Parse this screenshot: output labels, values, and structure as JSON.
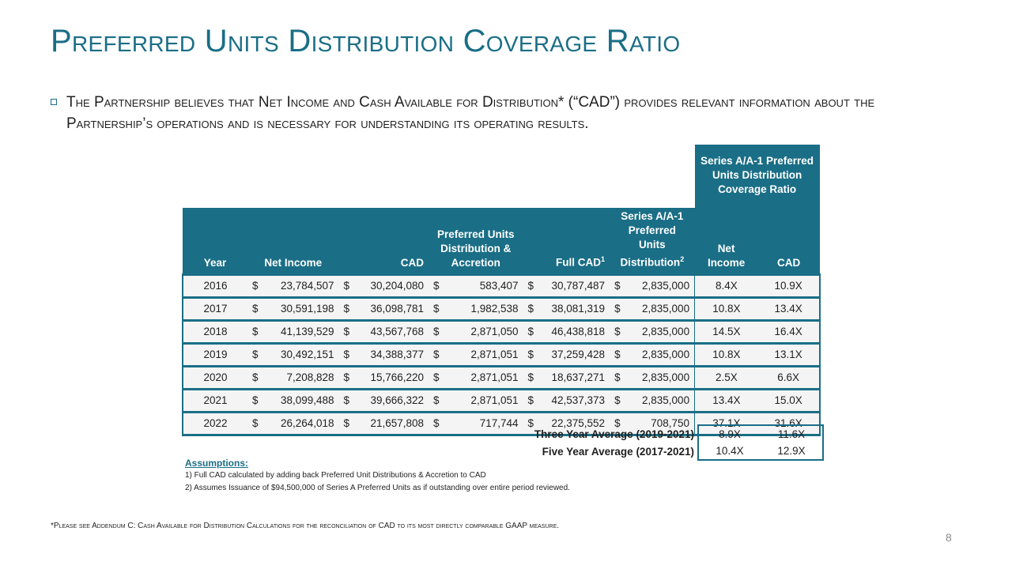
{
  "title": "Preferred Units Distribution Coverage Ratio",
  "bullet": "The Partnership believes that Net Income and Cash Available for Distribution* (“CAD”) provides relevant information about the Partnership’s operations and is necessary for understanding its operating results.",
  "table": {
    "group_header": "Series A/A-1 Preferred Units Distribution Coverage Ratio",
    "headers": {
      "year": "Year",
      "net_income": "Net Income",
      "cad": "CAD",
      "pref": "Preferred Units Distribution & Accretion",
      "full_cad": "Full CAD",
      "full_cad_sup": "1",
      "series": "Series A/A-1 Preferred Units Distribution",
      "series_sup": "2",
      "ratio_ni": "Net Income",
      "ratio_cad": "CAD"
    },
    "currency": "$",
    "rows": [
      {
        "year": "2016",
        "net_income": "23,784,507",
        "cad": "30,204,080",
        "pref": "583,407",
        "full_cad": "30,787,487",
        "series": "2,835,000",
        "ratio_ni": "8.4X",
        "ratio_cad": "10.9X"
      },
      {
        "year": "2017",
        "net_income": "30,591,198",
        "cad": "36,098,781",
        "pref": "1,982,538",
        "full_cad": "38,081,319",
        "series": "2,835,000",
        "ratio_ni": "10.8X",
        "ratio_cad": "13.4X"
      },
      {
        "year": "2018",
        "net_income": "41,139,529",
        "cad": "43,567,768",
        "pref": "2,871,050",
        "full_cad": "46,438,818",
        "series": "2,835,000",
        "ratio_ni": "14.5X",
        "ratio_cad": "16.4X"
      },
      {
        "year": "2019",
        "net_income": "30,492,151",
        "cad": "34,388,377",
        "pref": "2,871,051",
        "full_cad": "37,259,428",
        "series": "2,835,000",
        "ratio_ni": "10.8X",
        "ratio_cad": "13.1X"
      },
      {
        "year": "2020",
        "net_income": "7,208,828",
        "cad": "15,766,220",
        "pref": "2,871,051",
        "full_cad": "18,637,271",
        "series": "2,835,000",
        "ratio_ni": "2.5X",
        "ratio_cad": "6.6X"
      },
      {
        "year": "2021",
        "net_income": "38,099,488",
        "cad": "39,666,322",
        "pref": "2,871,051",
        "full_cad": "42,537,373",
        "series": "2,835,000",
        "ratio_ni": "13.4X",
        "ratio_cad": "15.0X"
      },
      {
        "year": "2022",
        "net_income": "26,264,018",
        "cad": "21,657,808",
        "pref": "717,744",
        "full_cad": "22,375,552",
        "series": "708,750",
        "ratio_ni": "37.1X",
        "ratio_cad": "31.6X"
      }
    ]
  },
  "averages": [
    {
      "label": "Three Year Average (2019-2021)",
      "net_income": "8.9X",
      "cad": "11.6X"
    },
    {
      "label": "Five Year Average (2017-2021)",
      "net_income": "10.4X",
      "cad": "12.9X"
    }
  ],
  "assumptions": {
    "heading": "Assumptions:",
    "items": [
      "1) Full CAD calculated by adding back Preferred Unit Distributions & Accretion to CAD",
      "2) Assumes Issuance of $94,500,000 of Series A Preferred Units as if outstanding over entire period reviewed."
    ]
  },
  "footnote": "*Please see Addendum C: Cash Available for Distribution Calculations for the reconciliation of CAD to its most directly comparable GAAP measure.",
  "page_number": "8",
  "colors": {
    "accent": "#1a6e86",
    "row_bg": "#f4f4f4"
  }
}
